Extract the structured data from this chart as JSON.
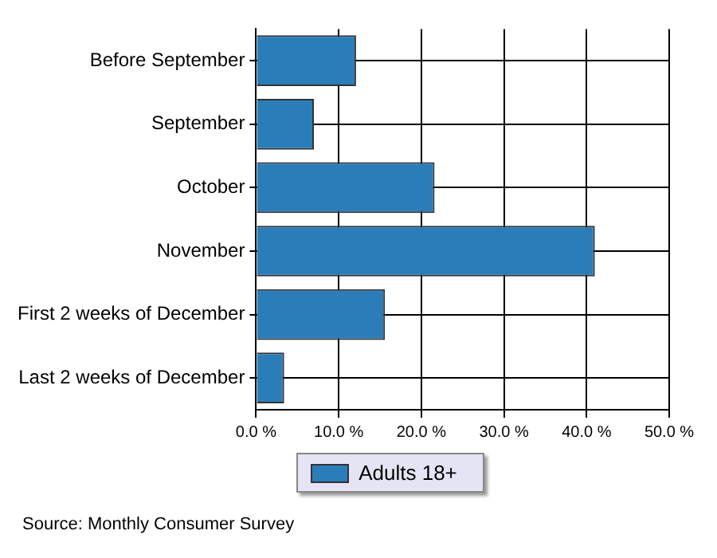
{
  "chart_data": {
    "type": "bar",
    "orientation": "horizontal",
    "categories": [
      "Before September",
      "September",
      "October",
      "November",
      "First 2 weeks of December",
      "Last 2 weeks of December"
    ],
    "series": [
      {
        "name": "Adults 18+",
        "color": "#2a7db8",
        "values": [
          12.1,
          7.0,
          21.6,
          41.0,
          15.6,
          3.4
        ]
      }
    ],
    "xlim": [
      0,
      50
    ],
    "xticks": [
      {
        "value": 0,
        "label": "0.0 %"
      },
      {
        "value": 10,
        "label": "10.0 %"
      },
      {
        "value": 20,
        "label": "20.0 %"
      },
      {
        "value": 30,
        "label": "30.0 %"
      },
      {
        "value": 40,
        "label": "40.0 %"
      },
      {
        "value": 50,
        "label": "50.0 %"
      }
    ],
    "grid": true,
    "legend": "bottom",
    "annotations": [
      "Source: Monthly Consumer Survey"
    ]
  }
}
